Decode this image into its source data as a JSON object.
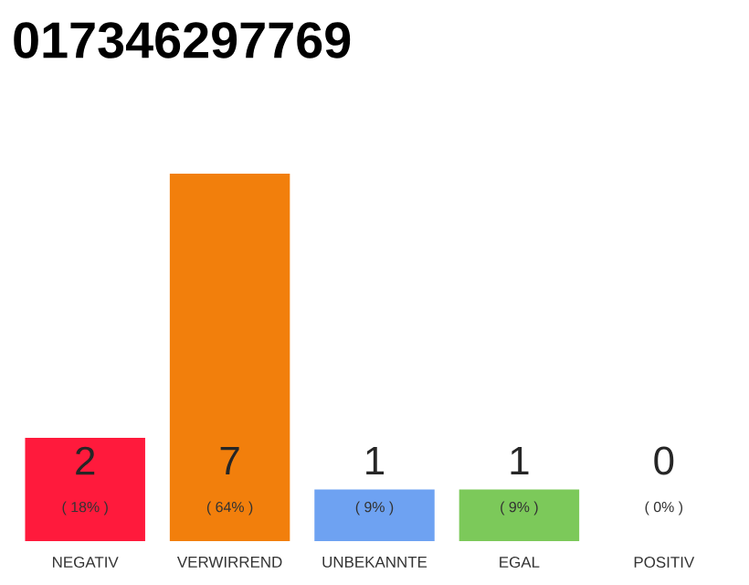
{
  "chart_data": {
    "type": "bar",
    "title": "017346297769",
    "categories": [
      "NEGATIV",
      "VERWIRREND",
      "UNBEKANNTE",
      "EGAL",
      "POSITIV"
    ],
    "values": [
      18,
      64,
      9,
      9,
      0
    ],
    "colors": [
      "#ff1a3c",
      "#f27f0c",
      "#6ea2f2",
      "#7cc95a",
      "#bbbbbb"
    ],
    "value_labels": [
      "( 18% )",
      "( 64% )",
      "( 9% )",
      "( 9% )",
      "( 0% )"
    ],
    "annotations": [
      "2",
      "7",
      "1",
      "1",
      "0"
    ]
  }
}
